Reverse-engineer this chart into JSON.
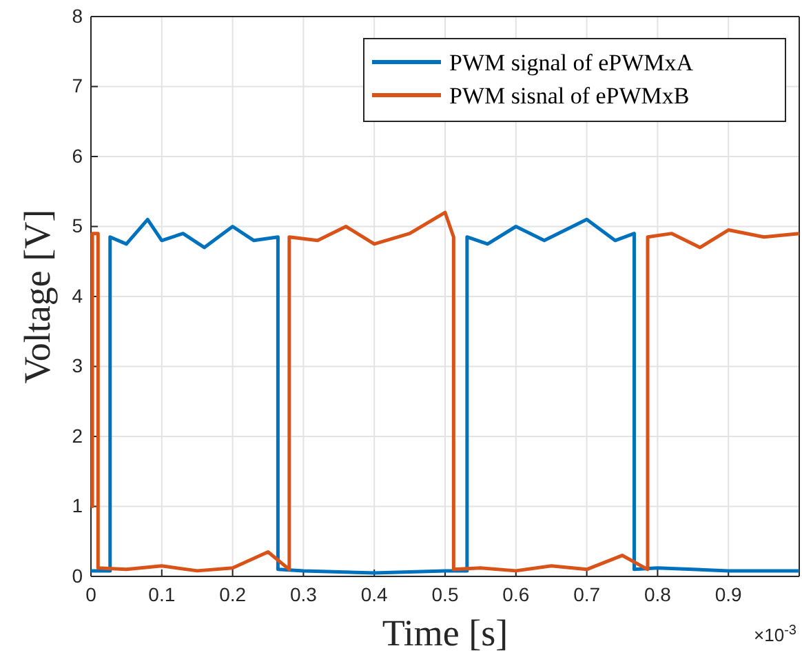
{
  "chart_data": {
    "type": "line",
    "xlabel": "Time [s]",
    "ylabel": "Voltage [V]",
    "xlim": [
      0,
      1
    ],
    "ylim": [
      0,
      8
    ],
    "xticks": [
      0,
      0.1,
      0.2,
      0.3,
      0.4,
      0.5,
      0.6,
      0.7,
      0.8,
      0.9
    ],
    "yticks": [
      0,
      1,
      2,
      3,
      4,
      5,
      6,
      7,
      8
    ],
    "grid": true,
    "legend": "top right",
    "line_style": "solid",
    "marker": "none",
    "annotations": [
      "×10$^{-3}$"
    ],
    "series": [
      {
        "name": "PWM signal of ePWMxA",
        "color": "#0072bd",
        "x": [
          0,
          0.027,
          0.027,
          0.05,
          0.08,
          0.1,
          0.13,
          0.16,
          0.2,
          0.23,
          0.264,
          0.264,
          0.3,
          0.4,
          0.5,
          0.531,
          0.531,
          0.56,
          0.6,
          0.64,
          0.7,
          0.74,
          0.767,
          0.767,
          0.8,
          0.9,
          1
        ],
        "values": [
          0.08,
          0.08,
          4.85,
          4.75,
          5.1,
          4.8,
          4.9,
          4.7,
          5.0,
          4.8,
          4.85,
          0.1,
          0.08,
          0.05,
          0.08,
          0.08,
          4.85,
          4.75,
          5.0,
          4.8,
          5.1,
          4.8,
          4.9,
          0.1,
          0.12,
          0.08,
          0.08
        ]
      },
      {
        "name": "PWM sisnal of ePWMxB",
        "color": "#d95319",
        "x": [
          0,
          0.002,
          0.002,
          0.01,
          0.01,
          0.05,
          0.1,
          0.15,
          0.2,
          0.25,
          0.28,
          0.28,
          0.32,
          0.36,
          0.4,
          0.45,
          0.5,
          0.512,
          0.512,
          0.55,
          0.6,
          0.65,
          0.7,
          0.75,
          0.786,
          0.786,
          0.82,
          0.86,
          0.9,
          0.95,
          1
        ],
        "values": [
          1,
          1,
          4.9,
          4.9,
          0.12,
          0.1,
          0.15,
          0.08,
          0.12,
          0.35,
          0.1,
          4.85,
          4.8,
          5.0,
          4.75,
          4.9,
          5.2,
          4.85,
          0.1,
          0.12,
          0.08,
          0.15,
          0.1,
          0.3,
          0.1,
          4.85,
          4.9,
          4.7,
          4.95,
          4.85,
          4.9
        ]
      }
    ]
  }
}
